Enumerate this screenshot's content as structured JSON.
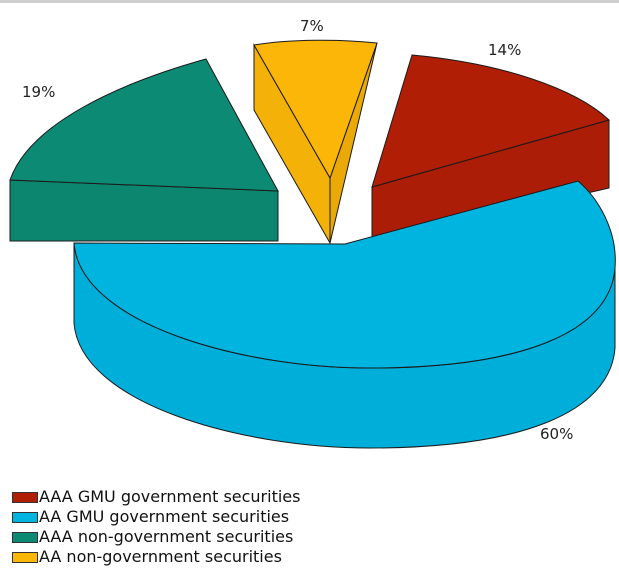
{
  "chart_data": {
    "type": "pie",
    "title": "",
    "slices": [
      {
        "label": "AAA GMU government securities",
        "value": 14,
        "value_label": "14%",
        "color": "#b01e06"
      },
      {
        "label": "AA GMU government securities",
        "value": 60,
        "value_label": "60%",
        "color": "#00b4e0"
      },
      {
        "label": "AAA non-government securities",
        "value": 19,
        "value_label": "19%",
        "color": "#0d8a73"
      },
      {
        "label": "AA non-government securities",
        "value": 7,
        "value_label": "7%",
        "color": "#fcb608"
      }
    ],
    "style": "3d-exploded",
    "legend_position": "bottom-left"
  }
}
